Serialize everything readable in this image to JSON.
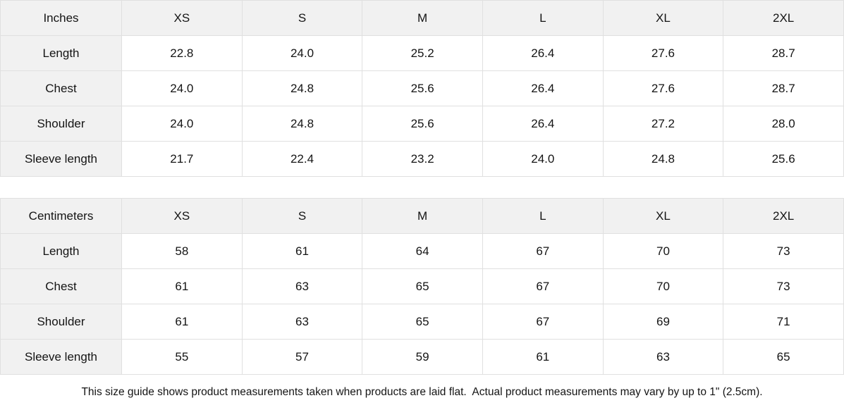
{
  "tables": [
    {
      "unit_label": "Inches",
      "columns": [
        "XS",
        "S",
        "M",
        "L",
        "XL",
        "2XL"
      ],
      "rows": [
        {
          "label": "Length",
          "values": [
            "22.8",
            "24.0",
            "25.2",
            "26.4",
            "27.6",
            "28.7"
          ]
        },
        {
          "label": "Chest",
          "values": [
            "24.0",
            "24.8",
            "25.6",
            "26.4",
            "27.6",
            "28.7"
          ]
        },
        {
          "label": "Shoulder",
          "values": [
            "24.0",
            "24.8",
            "25.6",
            "26.4",
            "27.2",
            "28.0"
          ]
        },
        {
          "label": "Sleeve length",
          "values": [
            "21.7",
            "22.4",
            "23.2",
            "24.0",
            "24.8",
            "25.6"
          ]
        }
      ]
    },
    {
      "unit_label": "Centimeters",
      "columns": [
        "XS",
        "S",
        "M",
        "L",
        "XL",
        "2XL"
      ],
      "rows": [
        {
          "label": "Length",
          "values": [
            "58",
            "61",
            "64",
            "67",
            "70",
            "73"
          ]
        },
        {
          "label": "Chest",
          "values": [
            "61",
            "63",
            "65",
            "67",
            "70",
            "73"
          ]
        },
        {
          "label": "Shoulder",
          "values": [
            "61",
            "63",
            "65",
            "67",
            "69",
            "71"
          ]
        },
        {
          "label": "Sleeve length",
          "values": [
            "55",
            "57",
            "59",
            "61",
            "63",
            "65"
          ]
        }
      ]
    }
  ],
  "footer": {
    "note": "This size guide shows product measurements taken when products are laid flat.  Actual product measurements may vary by up to 1\" (2.5cm)."
  },
  "colors": {
    "header_bg": "#f1f1f1",
    "border": "#e0e0e0",
    "text": "#141414"
  }
}
